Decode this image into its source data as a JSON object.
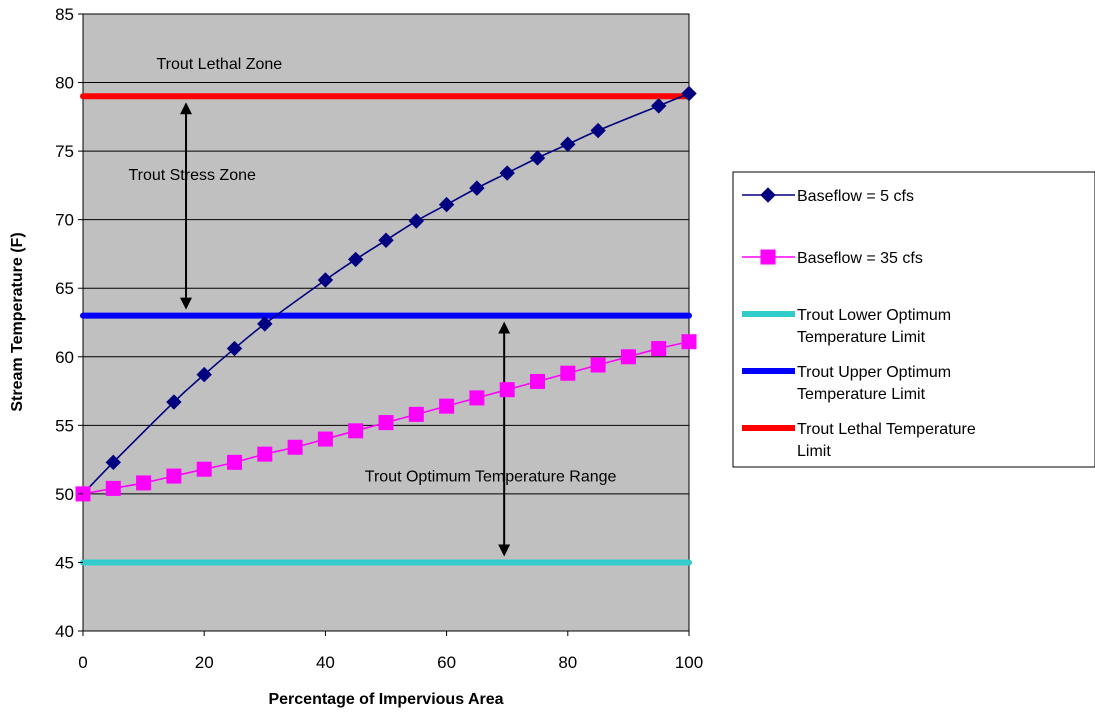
{
  "chart_data": {
    "type": "line",
    "xlabel": "Percentage of Impervious Area",
    "ylabel": "Stream Temperature (F)",
    "xlim": [
      0,
      100
    ],
    "ylim": [
      40,
      85
    ],
    "xticks": [
      0,
      20,
      40,
      60,
      80,
      100
    ],
    "yticks": [
      40,
      45,
      50,
      55,
      60,
      65,
      70,
      75,
      80,
      85
    ],
    "grid": "horizontal",
    "plot_background": "#c0c0c0",
    "legend_position": "right",
    "series": [
      {
        "name": "Baseflow = 5 cfs",
        "color": "#000080",
        "marker": "diamond",
        "x": [
          0,
          5,
          15,
          20,
          25,
          30,
          40,
          45,
          50,
          55,
          60,
          65,
          70,
          75,
          80,
          85,
          95,
          100
        ],
        "y": [
          50.0,
          52.3,
          56.7,
          58.7,
          60.6,
          62.4,
          65.6,
          67.1,
          68.5,
          69.9,
          71.1,
          72.3,
          73.4,
          74.5,
          75.5,
          76.5,
          78.3,
          79.2
        ]
      },
      {
        "name": "Baseflow = 35 cfs",
        "color": "#ff00ff",
        "marker": "square",
        "x": [
          0,
          5,
          10,
          15,
          20,
          25,
          30,
          35,
          40,
          45,
          50,
          55,
          60,
          65,
          70,
          75,
          80,
          85,
          90,
          95,
          100
        ],
        "y": [
          50.0,
          50.4,
          50.8,
          51.3,
          51.8,
          52.3,
          52.9,
          53.4,
          54.0,
          54.6,
          55.2,
          55.8,
          56.4,
          57.0,
          57.6,
          58.2,
          58.8,
          59.4,
          60.0,
          60.6,
          61.1
        ]
      },
      {
        "name": "Trout Lower Optimum Temperature Limit",
        "color": "#33cccc",
        "marker": "none",
        "x": [
          0,
          100
        ],
        "y": [
          45,
          45
        ]
      },
      {
        "name": "Trout Upper Optimum Temperature Limit",
        "color": "#0000ff",
        "marker": "none",
        "x": [
          0,
          100
        ],
        "y": [
          63,
          63
        ]
      },
      {
        "name": "Trout Lethal Temperature Limit",
        "color": "#ff0000",
        "marker": "none",
        "x": [
          0,
          100
        ],
        "y": [
          79,
          79
        ]
      }
    ],
    "annotations": [
      {
        "text": "Trout Lethal Zone",
        "x": 22.5,
        "y": 81.0,
        "anchor": "middle"
      },
      {
        "text": "Trout Stress Zone",
        "x": 7.5,
        "y": 72.9,
        "anchor": "start"
      },
      {
        "text": "Trout Optimum Temperature Range",
        "x": 46.5,
        "y": 50.9,
        "anchor": "start"
      }
    ],
    "arrows": [
      {
        "x": 17,
        "y_from": 79,
        "y_to": 63
      },
      {
        "x": 69.5,
        "y_from": 63,
        "y_to": 45
      }
    ]
  }
}
